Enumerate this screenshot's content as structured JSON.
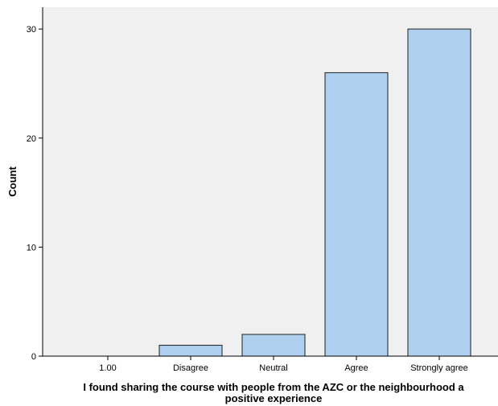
{
  "chart_data": {
    "type": "bar",
    "categories": [
      "1.00",
      "Disagree",
      "Neutral",
      "Agree",
      "Strongly agree"
    ],
    "values": [
      0,
      1,
      2,
      26,
      30
    ],
    "xlabel_lines": [
      "I found sharing the course with people from the AZC or the neighbourhood a",
      "positive experience"
    ],
    "ylabel": "Count",
    "ylim": [
      0,
      32
    ],
    "yticks": [
      0,
      10,
      20,
      30
    ],
    "grid": false,
    "colors": {
      "bar_fill": "#aed0ee",
      "bar_stroke": "#1f1f1f",
      "plot_background": "#f0f0f0",
      "axis": "#000000"
    }
  }
}
